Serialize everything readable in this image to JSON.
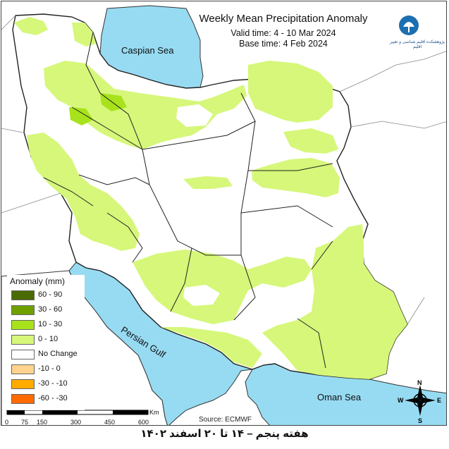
{
  "title": "Weekly Mean Precipitation Anomaly",
  "valid_time": "Valid time:  4 - 10 Mar 2024",
  "base_time": "Base time: 4 Feb 2024",
  "logo_text": "پژوهشکده اقلیم شناسی و تغییر اقلیم",
  "legend": {
    "title": "Anomaly (mm)",
    "items": [
      {
        "label": "60 - 90",
        "color": "#4a6b00"
      },
      {
        "label": "30 - 60",
        "color": "#6fa000"
      },
      {
        "label": "10 - 30",
        "color": "#a8e21c"
      },
      {
        "label": "0 - 10",
        "color": "#d6f77a"
      },
      {
        "label": "No Change",
        "color": "#ffffff"
      },
      {
        "label": "-10 - 0",
        "color": "#ffd38f"
      },
      {
        "label": "-30 - -10",
        "color": "#ffab00"
      },
      {
        "label": "-60 - -30",
        "color": "#ff6a00"
      }
    ]
  },
  "labels": {
    "caspian": "Caspian Sea",
    "persian_gulf": "Persian Gulf",
    "oman_sea": "Oman Sea"
  },
  "scale": {
    "ticks": [
      "0",
      "75",
      "150",
      "300",
      "450",
      "600"
    ],
    "unit": "Km"
  },
  "compass": {
    "n": "N",
    "s": "S",
    "e": "E",
    "w": "W"
  },
  "source": "Source: ECMWF",
  "caption": "هفته پنجم – ۱۴ تا ۲۰ اسفند ۱۴۰۲",
  "colors": {
    "water": "#97dbf2",
    "land_zero_ten": "#d6f77a",
    "no_change": "#ffffff",
    "border": "#222222"
  }
}
